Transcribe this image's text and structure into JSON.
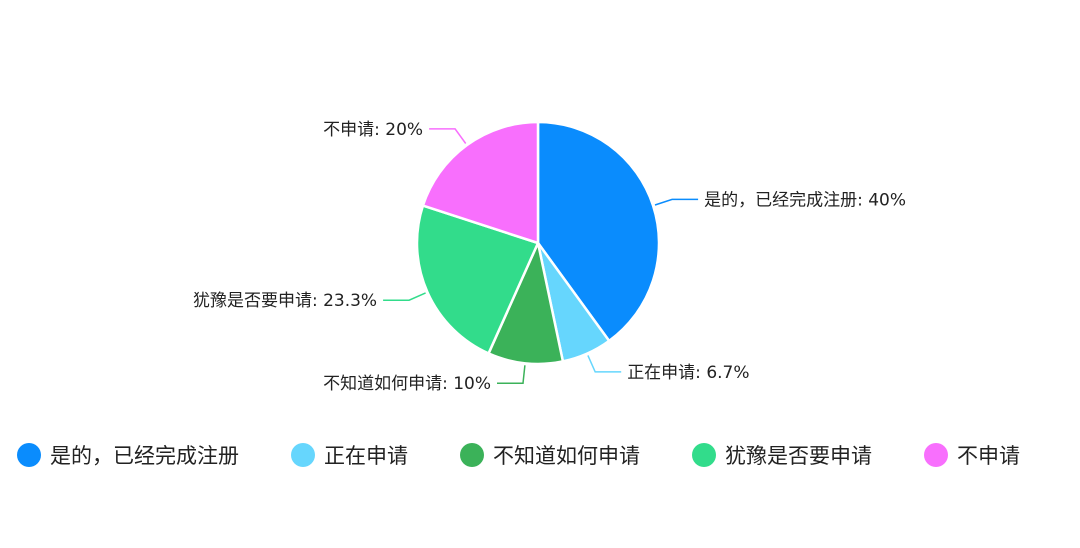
{
  "chart_data": {
    "type": "pie",
    "title": "",
    "slices": [
      {
        "label": "是的，已经完成注册",
        "value": 40,
        "value_label": "40%",
        "color": "#0a8cfd"
      },
      {
        "label": "正在申请",
        "value": 6.7,
        "value_label": "6.7%",
        "color": "#66d6fd"
      },
      {
        "label": "不知道如何申请",
        "value": 10,
        "value_label": "10%",
        "color": "#3bb259"
      },
      {
        "label": "犹豫是否要申请",
        "value": 23.3,
        "value_label": "23.3%",
        "color": "#32dc8b"
      },
      {
        "label": "不申请",
        "value": 20,
        "value_label": "20%",
        "color": "#f86ffd"
      }
    ],
    "legend_position": "bottom"
  }
}
